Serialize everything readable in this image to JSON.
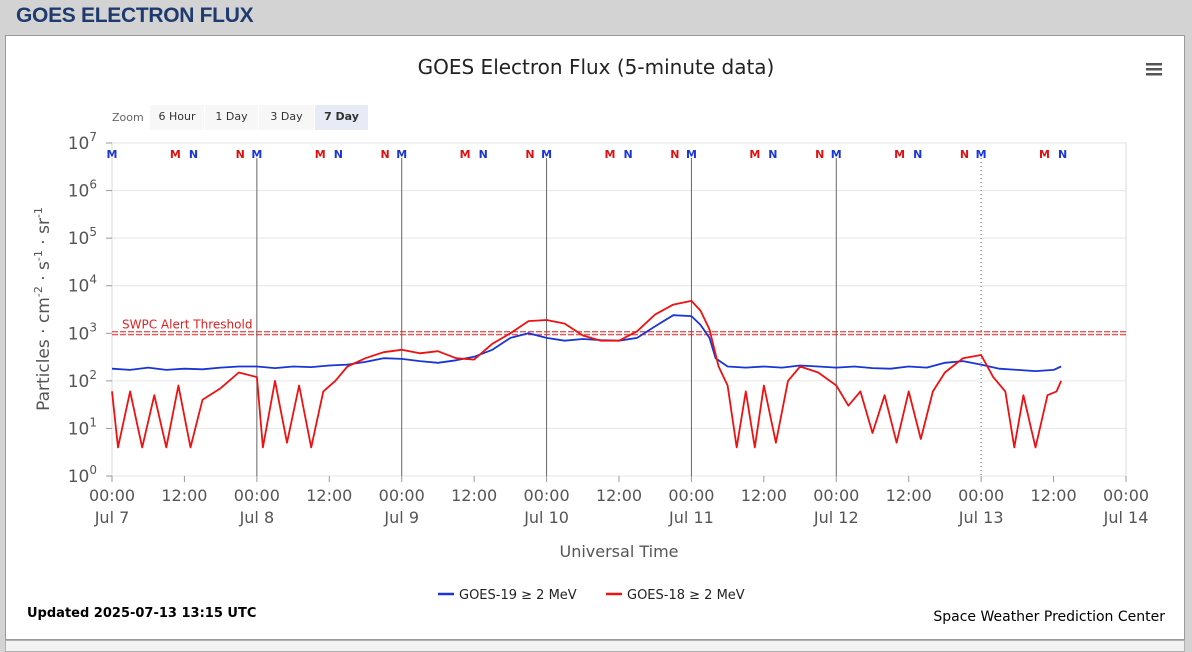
{
  "page": {
    "header_title": "GOES ELECTRON FLUX"
  },
  "menu_icon": "hamburger-menu-icon",
  "zoom": {
    "label": "Zoom",
    "buttons": [
      "6 Hour",
      "1 Day",
      "3 Day",
      "7 Day"
    ],
    "active": "7 Day"
  },
  "chart_data": {
    "type": "line",
    "title": "GOES Electron Flux (5-minute data)",
    "xlabel": "Universal Time",
    "ylabel_parts": [
      "Particles · cm",
      "-2",
      " · s",
      "-1",
      " · sr",
      "-1"
    ],
    "y_scale": "log",
    "ylim": [
      1,
      10000000
    ],
    "y_ticks": [
      {
        "value": 1,
        "base": "10",
        "exp": "0"
      },
      {
        "value": 10,
        "base": "10",
        "exp": "1"
      },
      {
        "value": 100,
        "base": "10",
        "exp": "2"
      },
      {
        "value": 1000,
        "base": "10",
        "exp": "3"
      },
      {
        "value": 10000,
        "base": "10",
        "exp": "4"
      },
      {
        "value": 100000,
        "base": "10",
        "exp": "5"
      },
      {
        "value": 1000000,
        "base": "10",
        "exp": "6"
      },
      {
        "value": 10000000,
        "base": "10",
        "exp": "7"
      }
    ],
    "x_range": [
      "2025-07-07 00:00",
      "2025-07-14 00:00"
    ],
    "x_ticks": [
      {
        "time": "2025-07-07 00:00",
        "label": "00:00",
        "date": "Jul 7"
      },
      {
        "time": "2025-07-07 12:00",
        "label": "12:00",
        "date": ""
      },
      {
        "time": "2025-07-08 00:00",
        "label": "00:00",
        "date": "Jul 8"
      },
      {
        "time": "2025-07-08 12:00",
        "label": "12:00",
        "date": ""
      },
      {
        "time": "2025-07-09 00:00",
        "label": "00:00",
        "date": "Jul 9"
      },
      {
        "time": "2025-07-09 12:00",
        "label": "12:00",
        "date": ""
      },
      {
        "time": "2025-07-10 00:00",
        "label": "00:00",
        "date": "Jul 10"
      },
      {
        "time": "2025-07-10 12:00",
        "label": "12:00",
        "date": ""
      },
      {
        "time": "2025-07-11 00:00",
        "label": "00:00",
        "date": "Jul 11"
      },
      {
        "time": "2025-07-11 12:00",
        "label": "12:00",
        "date": ""
      },
      {
        "time": "2025-07-12 00:00",
        "label": "00:00",
        "date": "Jul 12"
      },
      {
        "time": "2025-07-12 12:00",
        "label": "12:00",
        "date": ""
      },
      {
        "time": "2025-07-13 00:00",
        "label": "00:00",
        "date": "Jul 13"
      },
      {
        "time": "2025-07-13 12:00",
        "label": "12:00",
        "date": ""
      },
      {
        "time": "2025-07-14 00:00",
        "label": "00:00",
        "date": "Jul 14"
      }
    ],
    "day_lines": [
      {
        "time": "2025-07-08 00:00",
        "style": "solid"
      },
      {
        "time": "2025-07-09 00:00",
        "style": "solid"
      },
      {
        "time": "2025-07-10 00:00",
        "style": "solid"
      },
      {
        "time": "2025-07-11 00:00",
        "style": "solid"
      },
      {
        "time": "2025-07-12 00:00",
        "style": "solid"
      },
      {
        "time": "2025-07-13 00:00",
        "style": "dotted"
      }
    ],
    "threshold": {
      "label": "SWPC Alert Threshold",
      "value": 1000,
      "color": "#dd2222"
    },
    "markers": [
      {
        "letter": "M",
        "time": "2025-07-07 00:00",
        "color": "#1a35d6"
      },
      {
        "letter": "M",
        "time": "2025-07-07 10:30",
        "color": "#dd1111"
      },
      {
        "letter": "N",
        "time": "2025-07-07 13:30",
        "color": "#1a35d6"
      },
      {
        "letter": "N",
        "time": "2025-07-07 21:15",
        "color": "#dd1111"
      },
      {
        "letter": "M",
        "time": "2025-07-08 00:00",
        "color": "#1a35d6"
      },
      {
        "letter": "M",
        "time": "2025-07-08 10:30",
        "color": "#dd1111"
      },
      {
        "letter": "N",
        "time": "2025-07-08 13:30",
        "color": "#1a35d6"
      },
      {
        "letter": "N",
        "time": "2025-07-08 21:15",
        "color": "#dd1111"
      },
      {
        "letter": "M",
        "time": "2025-07-09 00:00",
        "color": "#1a35d6"
      },
      {
        "letter": "M",
        "time": "2025-07-09 10:30",
        "color": "#dd1111"
      },
      {
        "letter": "N",
        "time": "2025-07-09 13:30",
        "color": "#1a35d6"
      },
      {
        "letter": "N",
        "time": "2025-07-09 21:15",
        "color": "#dd1111"
      },
      {
        "letter": "M",
        "time": "2025-07-10 00:00",
        "color": "#1a35d6"
      },
      {
        "letter": "M",
        "time": "2025-07-10 10:30",
        "color": "#dd1111"
      },
      {
        "letter": "N",
        "time": "2025-07-10 13:30",
        "color": "#1a35d6"
      },
      {
        "letter": "N",
        "time": "2025-07-10 21:15",
        "color": "#dd1111"
      },
      {
        "letter": "M",
        "time": "2025-07-11 00:00",
        "color": "#1a35d6"
      },
      {
        "letter": "M",
        "time": "2025-07-11 10:30",
        "color": "#dd1111"
      },
      {
        "letter": "N",
        "time": "2025-07-11 13:30",
        "color": "#1a35d6"
      },
      {
        "letter": "N",
        "time": "2025-07-11 21:15",
        "color": "#dd1111"
      },
      {
        "letter": "M",
        "time": "2025-07-12 00:00",
        "color": "#1a35d6"
      },
      {
        "letter": "M",
        "time": "2025-07-12 10:30",
        "color": "#dd1111"
      },
      {
        "letter": "N",
        "time": "2025-07-12 13:30",
        "color": "#1a35d6"
      },
      {
        "letter": "N",
        "time": "2025-07-12 21:15",
        "color": "#dd1111"
      },
      {
        "letter": "M",
        "time": "2025-07-13 00:00",
        "color": "#1a35d6"
      },
      {
        "letter": "M",
        "time": "2025-07-13 10:30",
        "color": "#dd1111"
      },
      {
        "letter": "N",
        "time": "2025-07-13 13:30",
        "color": "#1a35d6"
      }
    ],
    "series": [
      {
        "name": "GOES-19 ≥ 2 MeV",
        "color": "#1a35d6",
        "data": [
          [
            "2025-07-07 00:00",
            180
          ],
          [
            "2025-07-07 03:00",
            170
          ],
          [
            "2025-07-07 06:00",
            190
          ],
          [
            "2025-07-07 09:00",
            170
          ],
          [
            "2025-07-07 12:00",
            180
          ],
          [
            "2025-07-07 15:00",
            175
          ],
          [
            "2025-07-07 18:00",
            190
          ],
          [
            "2025-07-07 21:00",
            200
          ],
          [
            "2025-07-08 00:00",
            200
          ],
          [
            "2025-07-08 03:00",
            185
          ],
          [
            "2025-07-08 06:00",
            200
          ],
          [
            "2025-07-08 09:00",
            195
          ],
          [
            "2025-07-08 12:00",
            210
          ],
          [
            "2025-07-08 15:00",
            220
          ],
          [
            "2025-07-08 18:00",
            250
          ],
          [
            "2025-07-08 21:00",
            300
          ],
          [
            "2025-07-09 00:00",
            290
          ],
          [
            "2025-07-09 03:00",
            260
          ],
          [
            "2025-07-09 06:00",
            240
          ],
          [
            "2025-07-09 09:00",
            270
          ],
          [
            "2025-07-09 12:00",
            320
          ],
          [
            "2025-07-09 15:00",
            450
          ],
          [
            "2025-07-09 18:00",
            800
          ],
          [
            "2025-07-09 21:00",
            1000
          ],
          [
            "2025-07-10 00:00",
            800
          ],
          [
            "2025-07-10 03:00",
            700
          ],
          [
            "2025-07-10 06:00",
            760
          ],
          [
            "2025-07-10 09:00",
            720
          ],
          [
            "2025-07-10 12:00",
            700
          ],
          [
            "2025-07-10 15:00",
            800
          ],
          [
            "2025-07-10 18:00",
            1400
          ],
          [
            "2025-07-10 21:00",
            2400
          ],
          [
            "2025-07-11 00:00",
            2300
          ],
          [
            "2025-07-11 01:30",
            1500
          ],
          [
            "2025-07-11 03:00",
            800
          ],
          [
            "2025-07-11 04:00",
            300
          ],
          [
            "2025-07-11 06:00",
            200
          ],
          [
            "2025-07-11 09:00",
            190
          ],
          [
            "2025-07-11 12:00",
            200
          ],
          [
            "2025-07-11 15:00",
            190
          ],
          [
            "2025-07-11 18:00",
            210
          ],
          [
            "2025-07-11 21:00",
            200
          ],
          [
            "2025-07-12 00:00",
            190
          ],
          [
            "2025-07-12 03:00",
            200
          ],
          [
            "2025-07-12 06:00",
            185
          ],
          [
            "2025-07-12 09:00",
            180
          ],
          [
            "2025-07-12 12:00",
            200
          ],
          [
            "2025-07-12 15:00",
            190
          ],
          [
            "2025-07-12 18:00",
            240
          ],
          [
            "2025-07-12 21:00",
            260
          ],
          [
            "2025-07-13 00:00",
            220
          ],
          [
            "2025-07-13 03:00",
            180
          ],
          [
            "2025-07-13 06:00",
            170
          ],
          [
            "2025-07-13 09:00",
            160
          ],
          [
            "2025-07-13 12:00",
            170
          ],
          [
            "2025-07-13 13:15",
            200
          ]
        ]
      },
      {
        "name": "GOES-18 ≥ 2 MeV",
        "color": "#ee1111",
        "data": [
          [
            "2025-07-07 00:00",
            60
          ],
          [
            "2025-07-07 01:00",
            4
          ],
          [
            "2025-07-07 03:00",
            60
          ],
          [
            "2025-07-07 05:00",
            4
          ],
          [
            "2025-07-07 07:00",
            50
          ],
          [
            "2025-07-07 09:00",
            4
          ],
          [
            "2025-07-07 11:00",
            80
          ],
          [
            "2025-07-07 13:00",
            4
          ],
          [
            "2025-07-07 15:00",
            40
          ],
          [
            "2025-07-07 18:00",
            70
          ],
          [
            "2025-07-07 21:00",
            150
          ],
          [
            "2025-07-08 00:00",
            120
          ],
          [
            "2025-07-08 01:00",
            4
          ],
          [
            "2025-07-08 03:00",
            100
          ],
          [
            "2025-07-08 05:00",
            5
          ],
          [
            "2025-07-08 07:00",
            80
          ],
          [
            "2025-07-08 09:00",
            4
          ],
          [
            "2025-07-08 11:00",
            60
          ],
          [
            "2025-07-08 13:00",
            100
          ],
          [
            "2025-07-08 15:00",
            200
          ],
          [
            "2025-07-08 18:00",
            300
          ],
          [
            "2025-07-08 21:00",
            400
          ],
          [
            "2025-07-09 00:00",
            450
          ],
          [
            "2025-07-09 03:00",
            380
          ],
          [
            "2025-07-09 06:00",
            420
          ],
          [
            "2025-07-09 09:00",
            300
          ],
          [
            "2025-07-09 12:00",
            280
          ],
          [
            "2025-07-09 15:00",
            600
          ],
          [
            "2025-07-09 18:00",
            1000
          ],
          [
            "2025-07-09 21:00",
            1800
          ],
          [
            "2025-07-10 00:00",
            1900
          ],
          [
            "2025-07-10 03:00",
            1600
          ],
          [
            "2025-07-10 06:00",
            900
          ],
          [
            "2025-07-10 09:00",
            700
          ],
          [
            "2025-07-10 12:00",
            700
          ],
          [
            "2025-07-10 15:00",
            1100
          ],
          [
            "2025-07-10 18:00",
            2500
          ],
          [
            "2025-07-10 21:00",
            4000
          ],
          [
            "2025-07-11 00:00",
            4800
          ],
          [
            "2025-07-11 01:30",
            3000
          ],
          [
            "2025-07-11 03:00",
            1200
          ],
          [
            "2025-07-11 04:30",
            200
          ],
          [
            "2025-07-11 06:00",
            80
          ],
          [
            "2025-07-11 07:30",
            4
          ],
          [
            "2025-07-11 09:00",
            60
          ],
          [
            "2025-07-11 10:30",
            4
          ],
          [
            "2025-07-11 12:00",
            80
          ],
          [
            "2025-07-11 14:00",
            5
          ],
          [
            "2025-07-11 16:00",
            100
          ],
          [
            "2025-07-11 18:00",
            200
          ],
          [
            "2025-07-11 21:00",
            150
          ],
          [
            "2025-07-12 00:00",
            80
          ],
          [
            "2025-07-12 02:00",
            30
          ],
          [
            "2025-07-12 04:00",
            60
          ],
          [
            "2025-07-12 06:00",
            8
          ],
          [
            "2025-07-12 08:00",
            50
          ],
          [
            "2025-07-12 10:00",
            5
          ],
          [
            "2025-07-12 12:00",
            60
          ],
          [
            "2025-07-12 14:00",
            6
          ],
          [
            "2025-07-12 16:00",
            60
          ],
          [
            "2025-07-12 18:00",
            150
          ],
          [
            "2025-07-12 21:00",
            300
          ],
          [
            "2025-07-13 00:00",
            350
          ],
          [
            "2025-07-13 02:00",
            120
          ],
          [
            "2025-07-13 04:00",
            60
          ],
          [
            "2025-07-13 05:30",
            4
          ],
          [
            "2025-07-13 07:00",
            50
          ],
          [
            "2025-07-13 09:00",
            4
          ],
          [
            "2025-07-13 11:00",
            50
          ],
          [
            "2025-07-13 12:30",
            60
          ],
          [
            "2025-07-13 13:15",
            100
          ]
        ]
      }
    ]
  },
  "footer": {
    "updated": "Updated 2025-07-13 13:15 UTC",
    "credit": "Space Weather Prediction Center"
  }
}
